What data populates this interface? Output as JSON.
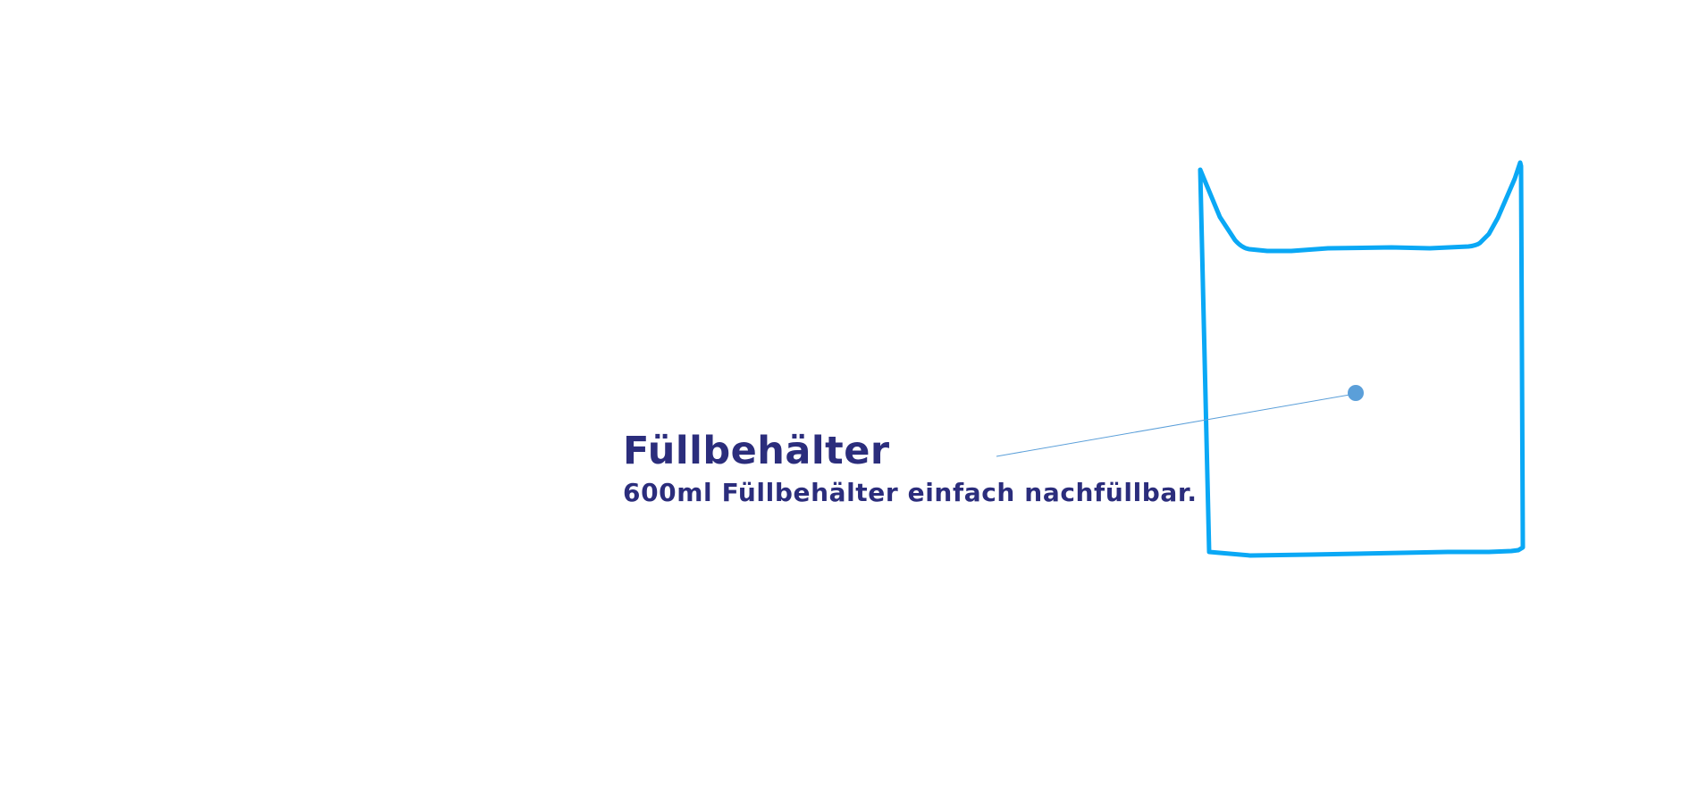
{
  "hotspot": {
    "title": "Füllbehälter",
    "description": "600ml Füllbehälter einfach nachfüllbar."
  },
  "colors": {
    "outline": "#0aa8f5",
    "text": "#2b2d7c",
    "marker": "#5b9fd9",
    "leader": "#5b9fd9"
  },
  "icons": {
    "container": "container-outline-icon",
    "marker": "hotspot-marker-icon"
  }
}
